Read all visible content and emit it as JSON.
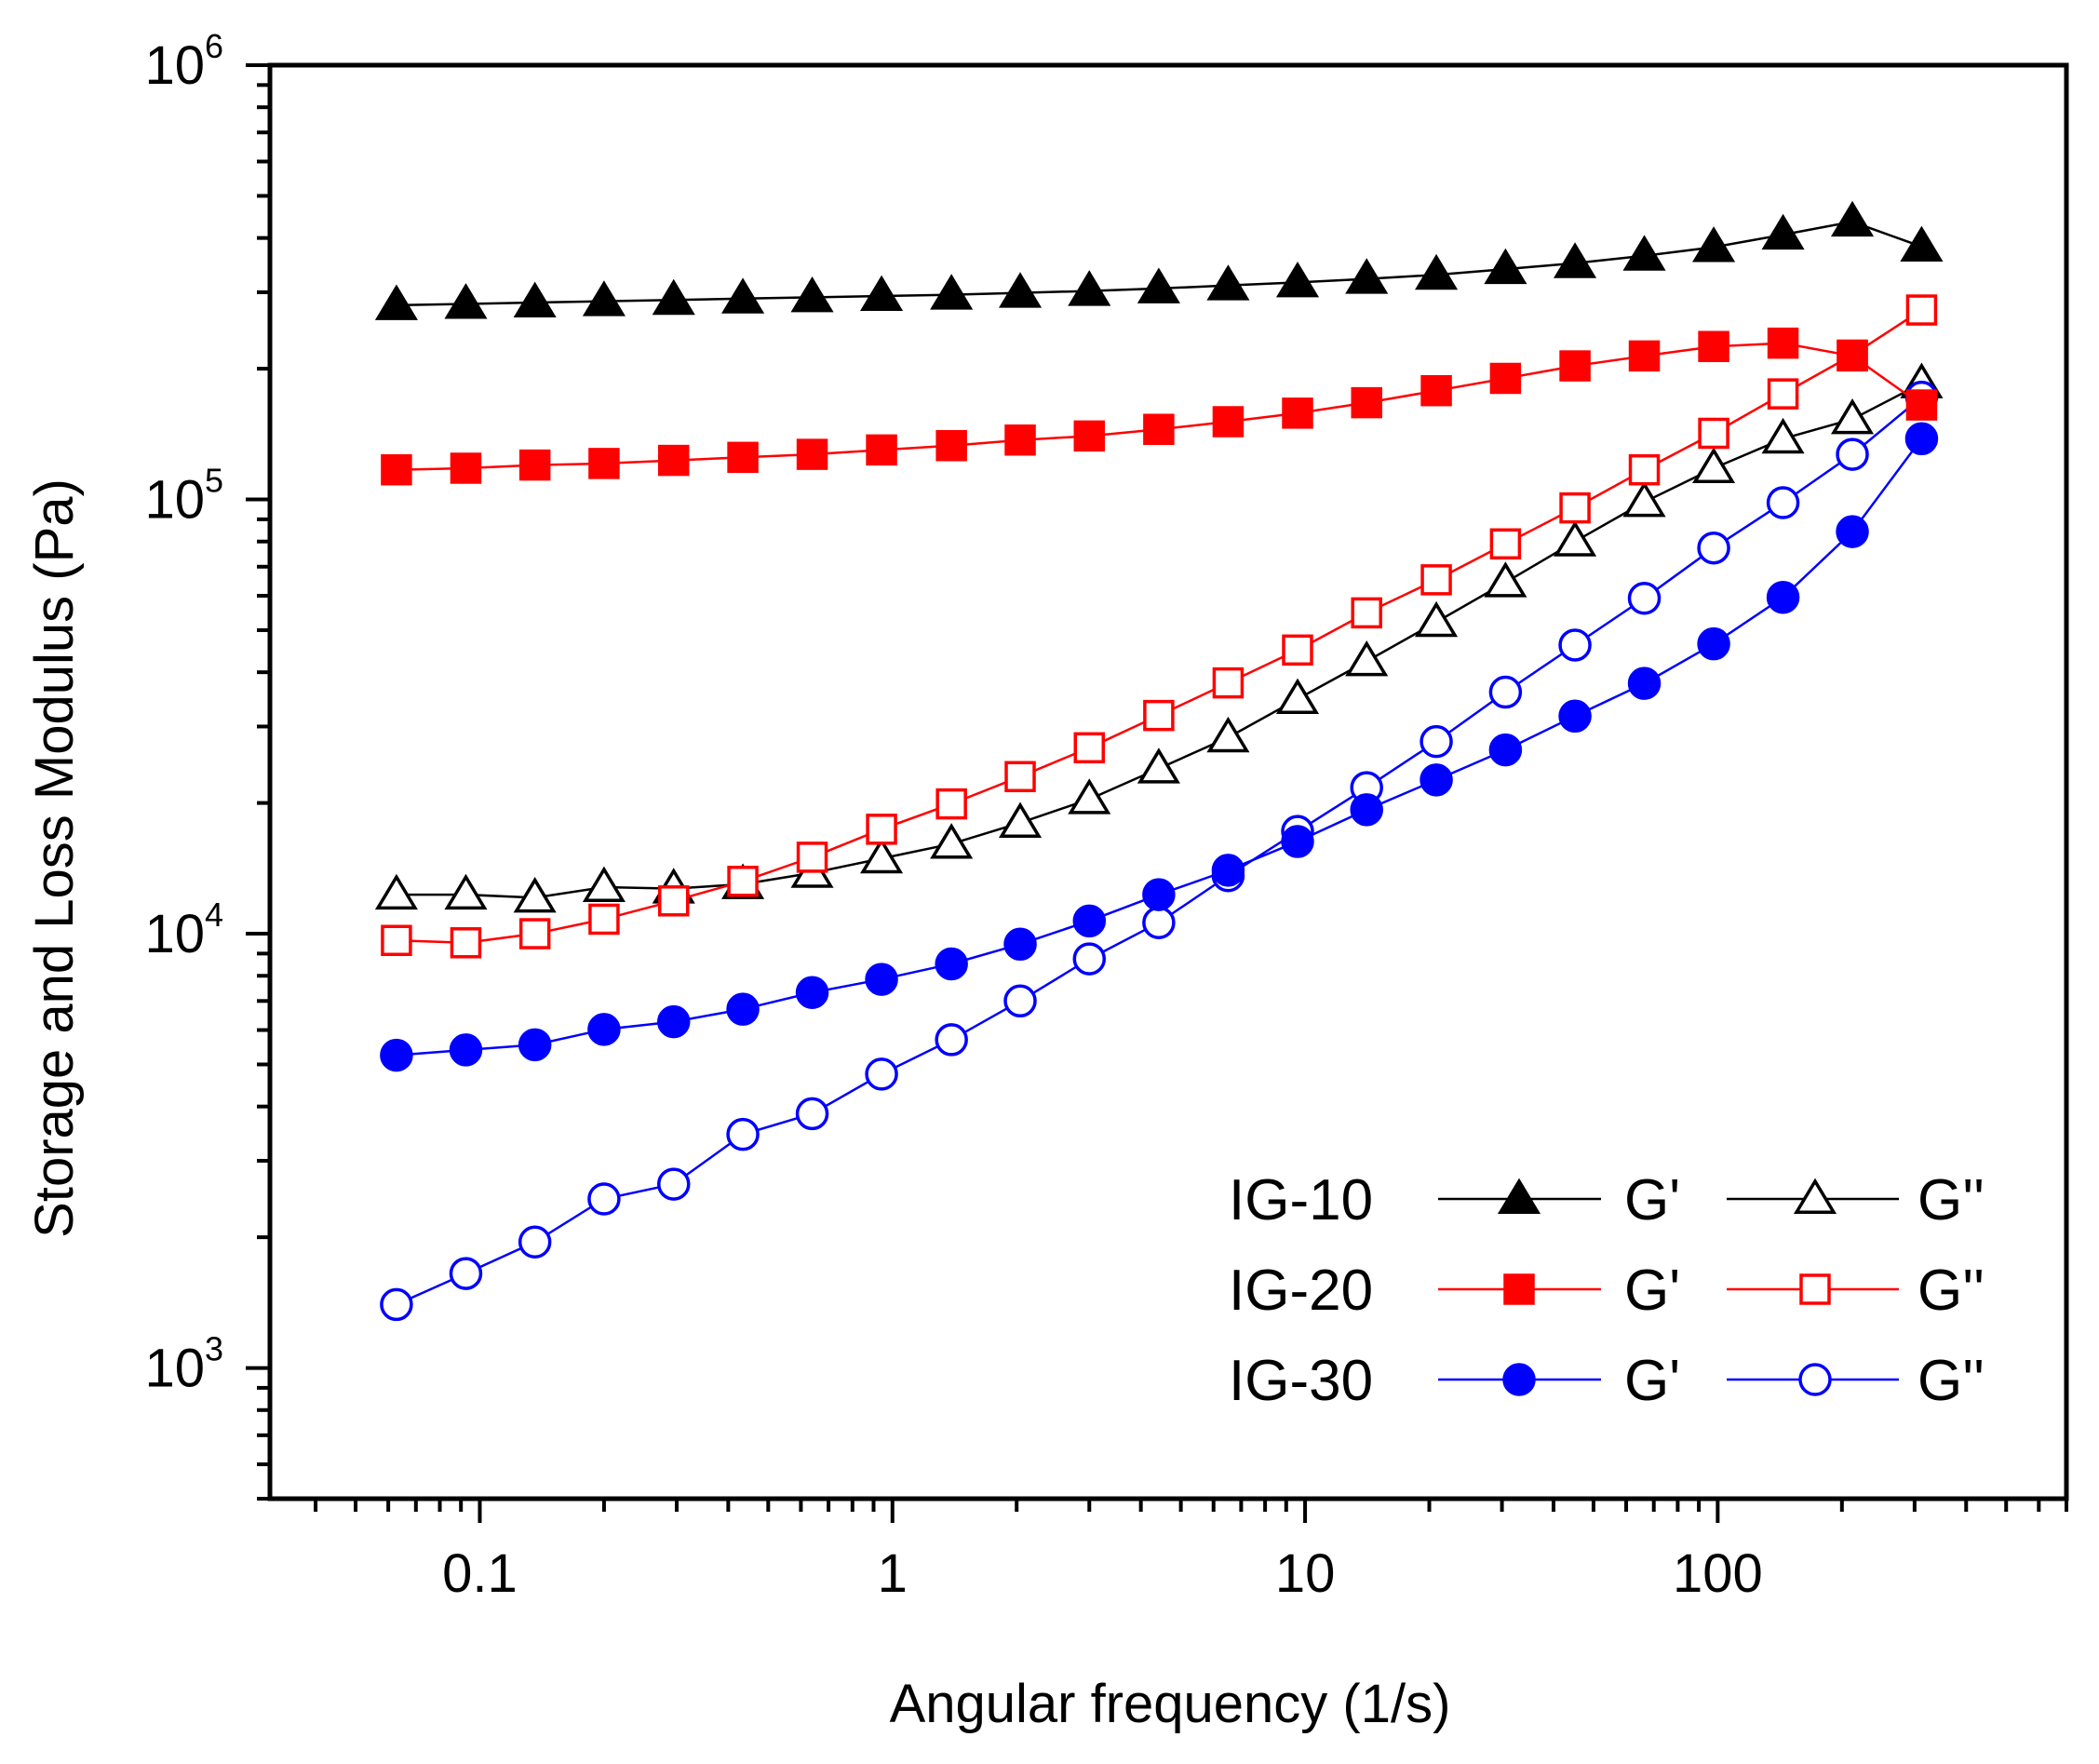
{
  "chart_data": {
    "type": "scatter",
    "title": "",
    "xlabel": "Angular frequency (1/s)",
    "ylabel": "Storage and Loss Modulus (Pa)",
    "xscale": "log",
    "yscale": "log",
    "xlim": [
      0.031,
      700
    ],
    "ylim": [
      500,
      1000000
    ],
    "x_tick_labels": [
      {
        "value": 0.1,
        "label": "0.1"
      },
      {
        "value": 1,
        "label": "1"
      },
      {
        "value": 10,
        "label": "10"
      },
      {
        "value": 100,
        "label": "100"
      }
    ],
    "y_tick_labels": [
      {
        "value": 1000,
        "base": "10",
        "exp": "3"
      },
      {
        "value": 10000,
        "base": "10",
        "exp": "4"
      },
      {
        "value": 100000,
        "base": "10",
        "exp": "5"
      },
      {
        "value": 1000000,
        "base": "10",
        "exp": "6"
      }
    ],
    "x": [
      0.0628,
      0.0925,
      0.136,
      0.2,
      0.295,
      0.434,
      0.639,
      0.941,
      1.39,
      2.04,
      3.0,
      4.42,
      6.51,
      9.59,
      14.1,
      20.8,
      30.6,
      45.1,
      66.4,
      97.8,
      144,
      212,
      312
    ],
    "series": [
      {
        "name": "IG-10 G'",
        "sample": "IG-10",
        "modulus": "G'",
        "color": "#000000",
        "marker": "triangle",
        "filled": true,
        "values": [
          280000,
          282000,
          284000,
          286000,
          288000,
          290000,
          292000,
          294000,
          296000,
          299000,
          302000,
          306000,
          311000,
          316000,
          322000,
          329000,
          339000,
          350000,
          364000,
          381000,
          407000,
          436000,
          382000
        ]
      },
      {
        "name": "IG-10 G''",
        "sample": "IG-10",
        "modulus": "G''",
        "color": "#000000",
        "marker": "triangle",
        "filled": false,
        "values": [
          12300,
          12300,
          12100,
          12800,
          12700,
          13000,
          13800,
          14900,
          16100,
          18000,
          20400,
          24000,
          28300,
          34700,
          42400,
          52200,
          64400,
          80000,
          98600,
          118000,
          138000,
          153000,
          185000
        ]
      },
      {
        "name": "IG-20 G'",
        "sample": "IG-20",
        "modulus": "G'",
        "color": "#ff0000",
        "marker": "square",
        "filled": true,
        "values": [
          117000,
          118000,
          120000,
          121000,
          123000,
          125000,
          127000,
          130000,
          133000,
          137000,
          140000,
          145000,
          151000,
          158000,
          167000,
          178000,
          190000,
          203000,
          214000,
          225000,
          229000,
          214000,
          165000
        ]
      },
      {
        "name": "IG-20 G''",
        "sample": "IG-20",
        "modulus": "G''",
        "color": "#ff0000",
        "marker": "square",
        "filled": false,
        "values": [
          9650,
          9530,
          10000,
          10800,
          11900,
          13200,
          15000,
          17400,
          19900,
          23000,
          26800,
          31800,
          37800,
          45000,
          54800,
          65300,
          79000,
          95600,
          117000,
          142000,
          175000,
          215000,
          273000
        ]
      },
      {
        "name": "IG-30 G'",
        "sample": "IG-30",
        "modulus": "G'",
        "color": "#0000ff",
        "marker": "circle",
        "filled": true,
        "values": [
          5250,
          5400,
          5550,
          6020,
          6270,
          6700,
          7320,
          7850,
          8520,
          9460,
          10700,
          12300,
          14000,
          16300,
          19300,
          22600,
          26500,
          31700,
          37700,
          46500,
          59500,
          84300,
          138000
        ]
      },
      {
        "name": "IG-30 G''",
        "sample": "IG-30",
        "modulus": "G''",
        "color": "#0000ff",
        "marker": "circle",
        "filled": false,
        "values": [
          1400,
          1650,
          1950,
          2450,
          2650,
          3450,
          3850,
          4750,
          5700,
          7000,
          8750,
          10600,
          13600,
          17200,
          21700,
          27700,
          36000,
          46200,
          59200,
          77300,
          98300,
          127000,
          172000
        ]
      }
    ],
    "legend": {
      "position": "bottom-right",
      "rows": [
        {
          "sample": "IG-10",
          "g_prime": "G'",
          "g_double_prime": "G''",
          "color": "#000000",
          "marker": "triangle"
        },
        {
          "sample": "IG-20",
          "g_prime": "G'",
          "g_double_prime": "G''",
          "color": "#ff0000",
          "marker": "square"
        },
        {
          "sample": "IG-30",
          "g_prime": "G'",
          "g_double_prime": "G''",
          "color": "#0000ff",
          "marker": "circle"
        }
      ]
    },
    "grid": false
  }
}
